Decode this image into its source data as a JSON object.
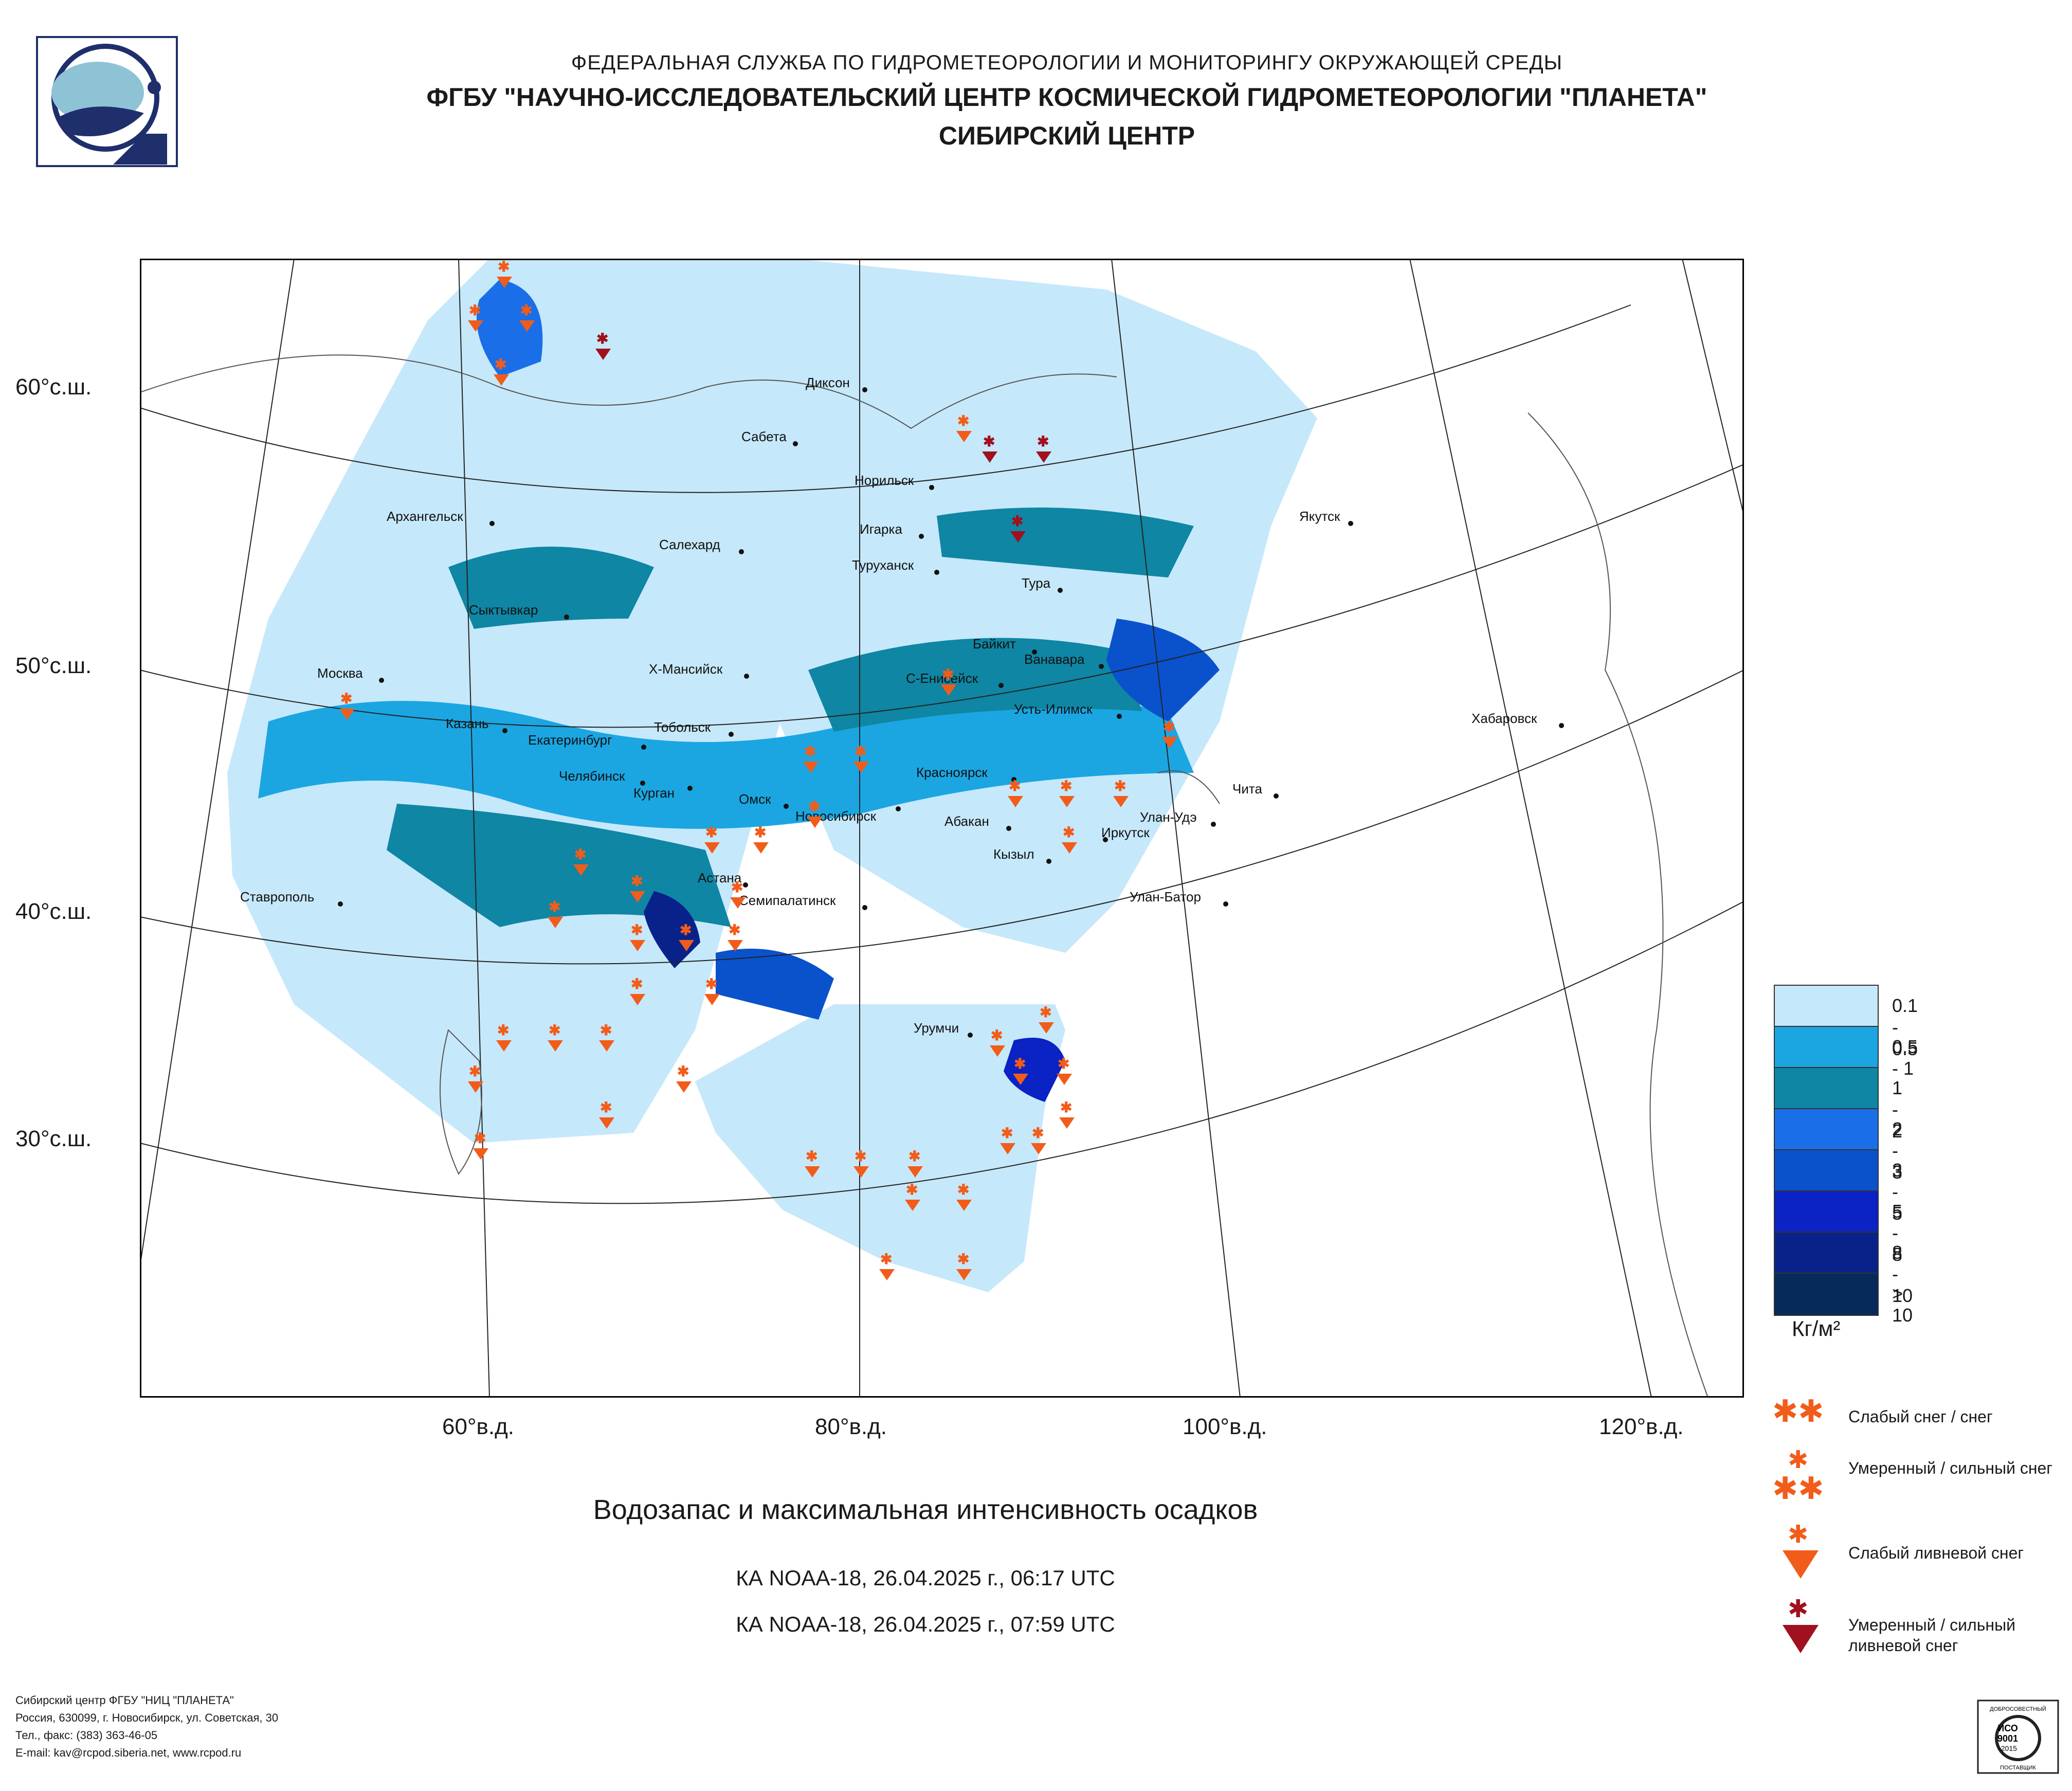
{
  "header": {
    "line1": "ФЕДЕРАЛЬНАЯ СЛУЖБА ПО ГИДРОМЕТЕОРОЛОГИИ И МОНИТОРИНГУ ОКРУЖАЮЩЕЙ СРЕДЫ",
    "line2": "ФГБУ \"НАУЧНО-ИССЛЕДОВАТЕЛЬСКИЙ ЦЕНТР КОСМИЧЕСКОЙ ГИДРОМЕТЕОРОЛОГИИ \"ПЛАНЕТА\"",
    "line3": "СИБИРСКИЙ ЦЕНТР"
  },
  "map": {
    "lat_labels": [
      "60°с.ш.",
      "50°с.ш.",
      "40°с.ш.",
      "30°с.ш."
    ],
    "lon_labels": [
      "60°в.д.",
      "80°в.д.",
      "100°в.д.",
      "120°в.д."
    ],
    "cities": [
      "Диксон",
      "Сабета",
      "Норильск",
      "Игарка",
      "Туруханск",
      "Тура",
      "Архангельск",
      "Салехард",
      "Сыктывкар",
      "Байкит",
      "Ванавара",
      "Москва",
      "Х-Мансийск",
      "С-Енисейск",
      "Усть-Илимск",
      "Хабаровск",
      "Казань",
      "Екатеринбург",
      "Тобольск",
      "Якутск",
      "Челябинск",
      "Курган",
      "Омск",
      "Новосибирск",
      "Красноярск",
      "Чита",
      "Абакан",
      "Улан-Удэ",
      "Иркутск",
      "Кызыл",
      "Астана",
      "Ставрополь",
      "Семипалатинск",
      "Улан-Батор",
      "Урумчи"
    ]
  },
  "title": "Водозапас и максимальная интенсивность осадков",
  "passes": [
    "КА NOAA-18, 26.04.2025 г., 06:17 UTC",
    "КА NOAA-18, 26.04.2025 г., 07:59 UTC"
  ],
  "legend": {
    "classes": [
      {
        "label": "0.1 - 0.5",
        "color": "#c6e8fb"
      },
      {
        "label": "0.5 - 1",
        "color": "#1ba6e2"
      },
      {
        "label": "1 - 2",
        "color": "#0f86a3"
      },
      {
        "label": "2 - 3",
        "color": "#1a6fe8"
      },
      {
        "label": "3 - 5",
        "color": "#0a52cc"
      },
      {
        "label": "5 - 8",
        "color": "#0b22c4"
      },
      {
        "label": "8 - 10",
        "color": "#09228a"
      },
      {
        "label": "> 10",
        "color": "#062a5a"
      }
    ],
    "units": "Кг/м²",
    "symbols": [
      {
        "label": "Слабый снег / снег",
        "color": "#f25c1a"
      },
      {
        "label": "Умеренный / сильный снег",
        "color": "#f25c1a"
      },
      {
        "label": "Слабый ливневой снег",
        "color": "#f25c1a"
      },
      {
        "label": "Умеренный / сильный ливневой снег",
        "color": "#a0101e"
      }
    ]
  },
  "footer": [
    "Сибирский центр ФГБУ \"НИЦ \"ПЛАНЕТА\"",
    "Россия, 630099, г. Новосибирск, ул. Советская, 30",
    "Тел., факс: (383) 363-46-05",
    "E-mail: kav@rcpod.siberia.net, www.rcpod.ru"
  ],
  "iso_badge": {
    "top": "ДОБРОСОВЕСТНЫЙ",
    "l1": "ИСО",
    "l2": "9001",
    "l3": "-2015",
    "bottom": "ПОСТАВЩИК"
  }
}
